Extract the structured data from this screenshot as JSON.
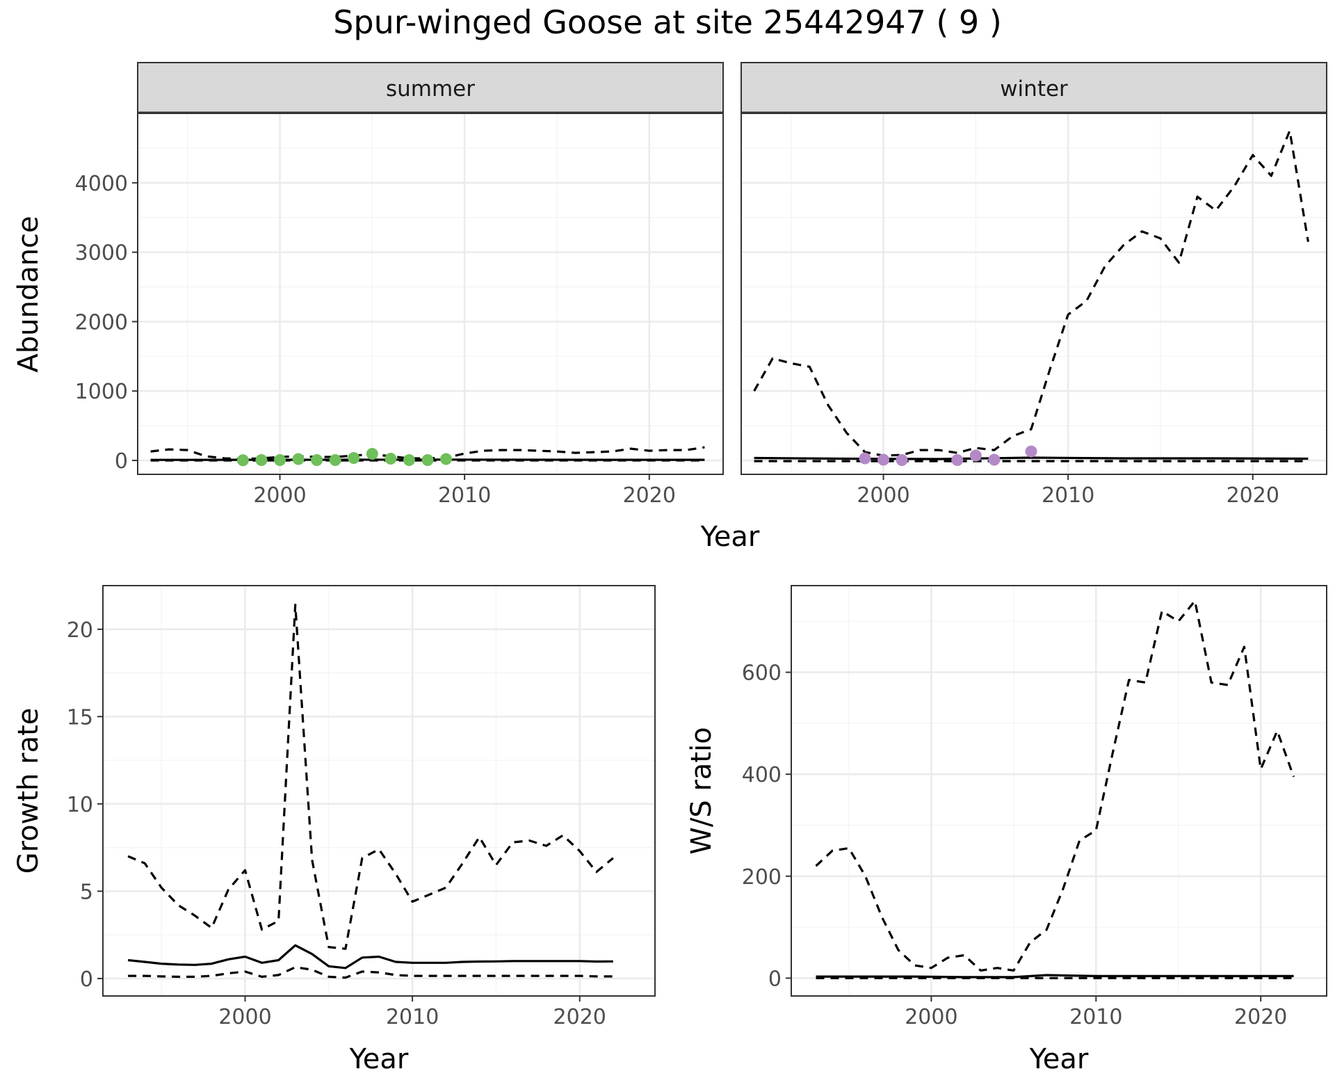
{
  "title": "Spur-winged Goose at site 25442947 ( 9 )",
  "colors": {
    "summer_points": "#6fbf5a",
    "winter_points": "#b38ac7",
    "lines": "#000000",
    "grid_major": "#ebebeb",
    "grid_minor": "#f3f3f3",
    "strip_fill": "#d9d9d9",
    "panel_border": "#333333"
  },
  "chart_data": [
    {
      "type": "line",
      "facets": [
        "summer",
        "winter"
      ],
      "xlabel": "Year",
      "ylabel": "Abundance",
      "xlim": [
        1992.3,
        2024.0
      ],
      "ylim": [
        -200,
        5000
      ],
      "xticks": [
        2000,
        2010,
        2020
      ],
      "yticks": [
        0,
        1000,
        2000,
        3000,
        4000
      ],
      "panels": [
        {
          "facet": "summer",
          "series": [
            {
              "style": "dashed",
              "x": [
                1993,
                1994,
                1995,
                1996,
                1997,
                1998,
                1999,
                2000,
                2001,
                2002,
                2003,
                2004,
                2005,
                2006,
                2007,
                2008,
                2009,
                2010,
                2011,
                2012,
                2013,
                2014,
                2015,
                2016,
                2017,
                2018,
                2019,
                2020,
                2021,
                2022,
                2023
              ],
              "y": [
                130,
                160,
                150,
                60,
                30,
                20,
                30,
                50,
                60,
                50,
                50,
                70,
                90,
                60,
                30,
                30,
                40,
                100,
                140,
                150,
                150,
                140,
                130,
                110,
                120,
                130,
                170,
                140,
                150,
                150,
                190
              ]
            },
            {
              "style": "solid",
              "x": [
                1993,
                1998,
                2003,
                2008,
                2013,
                2018,
                2023
              ],
              "y": [
                8,
                9,
                10,
                12,
                10,
                9,
                9
              ]
            },
            {
              "style": "dashed",
              "x": [
                1993,
                2023
              ],
              "y": [
                0,
                0
              ]
            }
          ],
          "points": {
            "x": [
              1998,
              1999,
              2000,
              2001,
              2002,
              2003,
              2004,
              2005,
              2006,
              2007,
              2008,
              2009
            ],
            "y": [
              3,
              5,
              5,
              20,
              5,
              5,
              35,
              95,
              25,
              5,
              5,
              20
            ]
          }
        },
        {
          "facet": "winter",
          "series": [
            {
              "style": "dashed",
              "x": [
                1993,
                1994,
                1995,
                1996,
                1997,
                1998,
                1999,
                2000,
                2001,
                2002,
                2003,
                2004,
                2005,
                2006,
                2007,
                2008,
                2009,
                2010,
                2011,
                2012,
                2013,
                2014,
                2015,
                2016,
                2017,
                2018,
                2019,
                2020,
                2021,
                2022,
                2023
              ],
              "y": [
                1000,
                1470,
                1400,
                1350,
                800,
                400,
                120,
                70,
                80,
                150,
                150,
                110,
                180,
                150,
                350,
                450,
                1300,
                2100,
                2300,
                2800,
                3100,
                3300,
                3200,
                2850,
                3800,
                3600,
                3950,
                4400,
                4100,
                4750,
                3150
              ]
            },
            {
              "style": "solid",
              "x": [
                1993,
                1998,
                2003,
                2008,
                2013,
                2018,
                2023
              ],
              "y": [
                35,
                25,
                20,
                40,
                30,
                30,
                25
              ]
            },
            {
              "style": "dashed",
              "x": [
                1993,
                2023
              ],
              "y": [
                -10,
                -10
              ]
            }
          ],
          "points": {
            "x": [
              1999,
              2000,
              2001,
              2004,
              2005,
              2006,
              2008
            ],
            "y": [
              30,
              10,
              5,
              5,
              70,
              10,
              130
            ]
          }
        }
      ]
    },
    {
      "type": "line",
      "xlabel": "Year",
      "ylabel": "Growth rate",
      "xlim": [
        1991.5,
        2024.5
      ],
      "ylim": [
        -1,
        22.5
      ],
      "xticks": [
        2000,
        2010,
        2020
      ],
      "yticks": [
        0,
        5,
        10,
        15,
        20
      ],
      "series": [
        {
          "style": "dashed",
          "x": [
            1993,
            1994,
            1995,
            1996,
            1997,
            1998,
            1999,
            2000,
            2001,
            2002,
            2003,
            2004,
            2005,
            2006,
            2007,
            2008,
            2009,
            2010,
            2011,
            2012,
            2013,
            2014,
            2015,
            2016,
            2017,
            2018,
            2019,
            2020,
            2021,
            2022
          ],
          "y": [
            7.0,
            6.6,
            5.2,
            4.2,
            3.6,
            2.9,
            5.1,
            6.2,
            2.8,
            3.3,
            21.4,
            6.8,
            1.8,
            1.7,
            6.9,
            7.4,
            6.0,
            4.4,
            4.8,
            5.2,
            6.6,
            8.1,
            6.5,
            7.8,
            7.9,
            7.6,
            8.2,
            7.3,
            6.1,
            6.9
          ]
        },
        {
          "style": "solid",
          "x": [
            1993,
            1994,
            1995,
            1996,
            1997,
            1998,
            1999,
            2000,
            2001,
            2002,
            2003,
            2004,
            2005,
            2006,
            2007,
            2008,
            2009,
            2010,
            2011,
            2012,
            2013,
            2014,
            2015,
            2016,
            2017,
            2018,
            2019,
            2020,
            2021,
            2022
          ],
          "y": [
            1.05,
            0.95,
            0.85,
            0.8,
            0.78,
            0.85,
            1.1,
            1.25,
            0.9,
            1.05,
            1.9,
            1.4,
            0.7,
            0.6,
            1.2,
            1.25,
            0.95,
            0.9,
            0.9,
            0.9,
            0.95,
            0.97,
            0.98,
            1.0,
            1.0,
            1.0,
            1.0,
            1.0,
            0.97,
            0.98
          ]
        },
        {
          "style": "dashed",
          "x": [
            1993,
            1994,
            1995,
            1996,
            1997,
            1998,
            1999,
            2000,
            2001,
            2002,
            2003,
            2004,
            2005,
            2006,
            2007,
            2008,
            2009,
            2010,
            2011,
            2012,
            2013,
            2014,
            2015,
            2016,
            2017,
            2018,
            2019,
            2020,
            2021,
            2022
          ],
          "y": [
            0.15,
            0.15,
            0.12,
            0.1,
            0.1,
            0.15,
            0.3,
            0.4,
            0.1,
            0.2,
            0.65,
            0.5,
            0.1,
            0.05,
            0.4,
            0.35,
            0.2,
            0.15,
            0.15,
            0.15,
            0.15,
            0.15,
            0.15,
            0.15,
            0.15,
            0.15,
            0.15,
            0.15,
            0.12,
            0.12
          ]
        }
      ]
    },
    {
      "type": "line",
      "xlabel": "Year",
      "ylabel": "W/S ratio",
      "xlim": [
        1991.5,
        2024.0
      ],
      "ylim": [
        -35,
        770
      ],
      "xticks": [
        2000,
        2010,
        2020
      ],
      "yticks": [
        0,
        200,
        400,
        600
      ],
      "series": [
        {
          "style": "dashed",
          "x": [
            1993,
            1994,
            1995,
            1996,
            1997,
            1998,
            1999,
            2000,
            2001,
            2002,
            2003,
            2004,
            2005,
            2006,
            2007,
            2008,
            2009,
            2010,
            2011,
            2012,
            2013,
            2014,
            2015,
            2016,
            2017,
            2018,
            2019,
            2020,
            2021,
            2022
          ],
          "y": [
            220,
            250,
            255,
            200,
            120,
            55,
            25,
            20,
            40,
            45,
            15,
            20,
            15,
            70,
            95,
            175,
            270,
            290,
            440,
            585,
            580,
            720,
            700,
            740,
            580,
            575,
            650,
            410,
            485,
            395
          ]
        },
        {
          "style": "solid",
          "x": [
            1993,
            1996,
            1999,
            2002,
            2005,
            2007,
            2010,
            2013,
            2016,
            2019,
            2022
          ],
          "y": [
            3,
            3,
            3,
            2,
            2,
            6,
            4,
            4,
            4,
            4,
            4
          ]
        },
        {
          "style": "dashed",
          "x": [
            1993,
            2022
          ],
          "y": [
            0,
            0
          ]
        }
      ]
    }
  ]
}
